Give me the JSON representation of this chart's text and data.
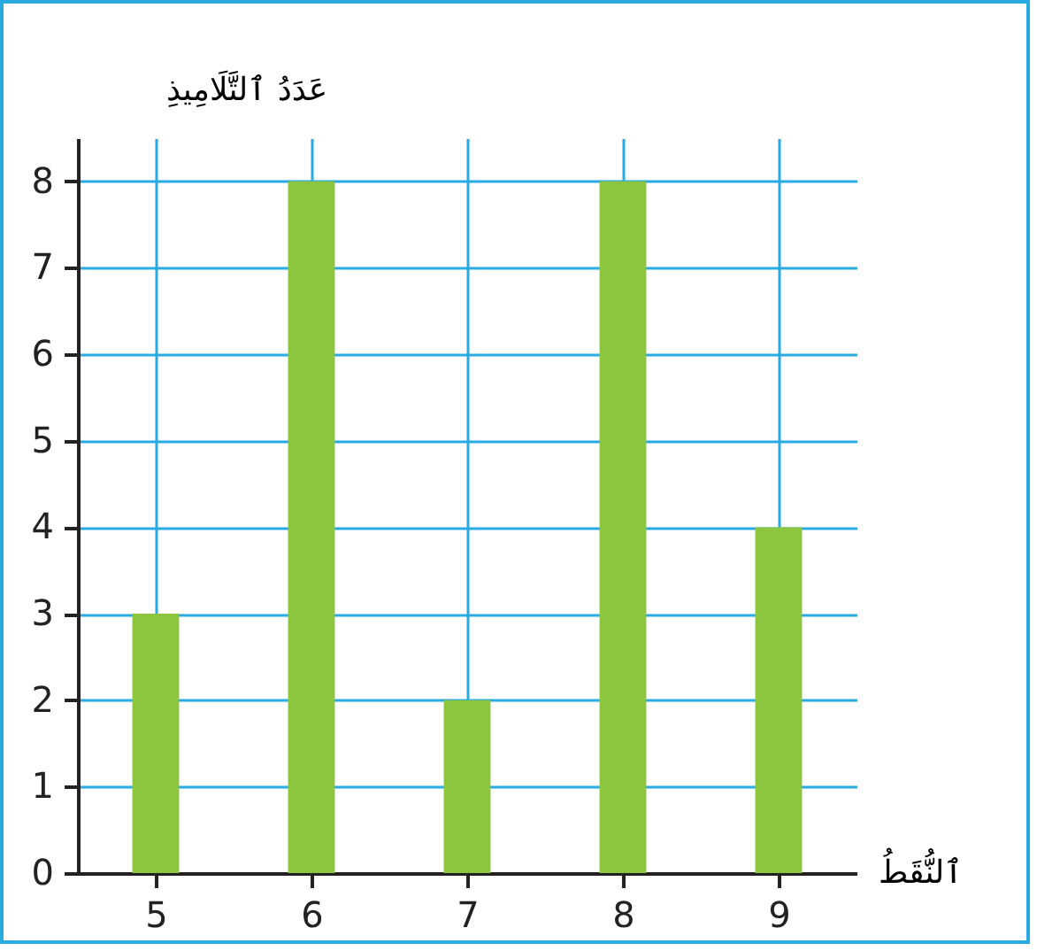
{
  "chart_data": {
    "type": "bar",
    "xlabel": "ٱلنُّقَطُ",
    "ylabel": "عَدَدُ ٱلتَّلَامِيذِ",
    "categories": [
      "5",
      "6",
      "7",
      "8",
      "9"
    ],
    "values": [
      3,
      8,
      2,
      8,
      4
    ],
    "color": "#8cc63f",
    "ylim": [
      0,
      8.5
    ],
    "yticks": [
      0,
      1,
      2,
      3,
      4,
      5,
      6,
      7,
      8
    ],
    "grid": true
  }
}
